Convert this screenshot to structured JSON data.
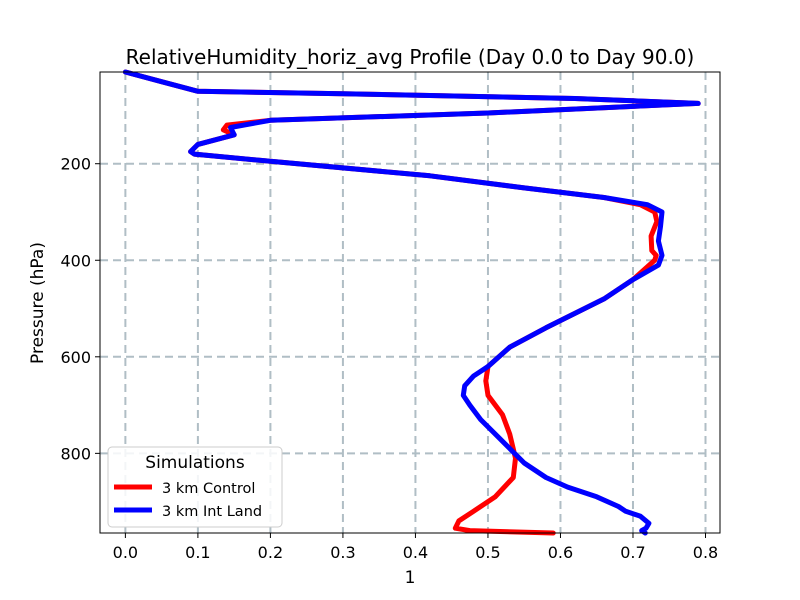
{
  "chart_data": {
    "type": "line",
    "title": "RelativeHumidity_horiz_avg Profile (Day 0.0 to Day 90.0)",
    "xlabel": "1",
    "ylabel": "Pressure (hPa)",
    "xlim": [
      -0.035,
      0.82
    ],
    "ylim": [
      965,
      10
    ],
    "y_inverted": true,
    "xticks": [
      0.0,
      0.1,
      0.2,
      0.3,
      0.4,
      0.5,
      0.6,
      0.7,
      0.8
    ],
    "xtick_labels": [
      "0.0",
      "0.1",
      "0.2",
      "0.3",
      "0.4",
      "0.5",
      "0.6",
      "0.7",
      "0.8"
    ],
    "yticks": [
      200,
      400,
      600,
      800
    ],
    "ytick_labels": [
      "200",
      "400",
      "600",
      "800"
    ],
    "grid": true,
    "legend": {
      "title": "Simulations",
      "position": "lower-left"
    },
    "series": [
      {
        "name": "3 km Control",
        "color": "#ff0000",
        "x": [
          0.0,
          0.05,
          0.1,
          0.3,
          0.62,
          0.79,
          0.5,
          0.2,
          0.14,
          0.135,
          0.15,
          0.1,
          0.09,
          0.095,
          0.2,
          0.42,
          0.55,
          0.66,
          0.71,
          0.73,
          0.733,
          0.725,
          0.726,
          0.732,
          0.73,
          0.7,
          0.66,
          0.58,
          0.53,
          0.5,
          0.497,
          0.5,
          0.52,
          0.53,
          0.538,
          0.535,
          0.51,
          0.48,
          0.46,
          0.455,
          0.475,
          0.59
        ],
        "y": [
          10,
          30,
          50,
          55,
          65,
          75,
          95,
          110,
          120,
          130,
          140,
          160,
          175,
          180,
          195,
          225,
          250,
          270,
          285,
          300,
          320,
          350,
          380,
          390,
          400,
          440,
          480,
          540,
          580,
          620,
          650,
          680,
          720,
          760,
          810,
          850,
          890,
          920,
          940,
          955,
          960,
          965
        ]
      },
      {
        "name": "3 km Int Land",
        "color": "#0000ff",
        "x": [
          0.0,
          0.05,
          0.1,
          0.3,
          0.62,
          0.79,
          0.5,
          0.2,
          0.145,
          0.15,
          0.1,
          0.09,
          0.095,
          0.2,
          0.42,
          0.55,
          0.66,
          0.72,
          0.74,
          0.738,
          0.735,
          0.74,
          0.735,
          0.7,
          0.66,
          0.58,
          0.53,
          0.5,
          0.48,
          0.468,
          0.466,
          0.475,
          0.49,
          0.51,
          0.53,
          0.55,
          0.58,
          0.61,
          0.65,
          0.68,
          0.69,
          0.71,
          0.722,
          0.718,
          0.712,
          0.717
        ],
        "y": [
          10,
          30,
          50,
          55,
          65,
          75,
          95,
          110,
          125,
          140,
          160,
          175,
          180,
          195,
          225,
          250,
          270,
          285,
          300,
          330,
          360,
          390,
          410,
          440,
          480,
          540,
          580,
          620,
          640,
          660,
          680,
          700,
          730,
          760,
          790,
          820,
          850,
          870,
          890,
          910,
          920,
          930,
          945,
          955,
          960,
          965
        ]
      }
    ]
  }
}
